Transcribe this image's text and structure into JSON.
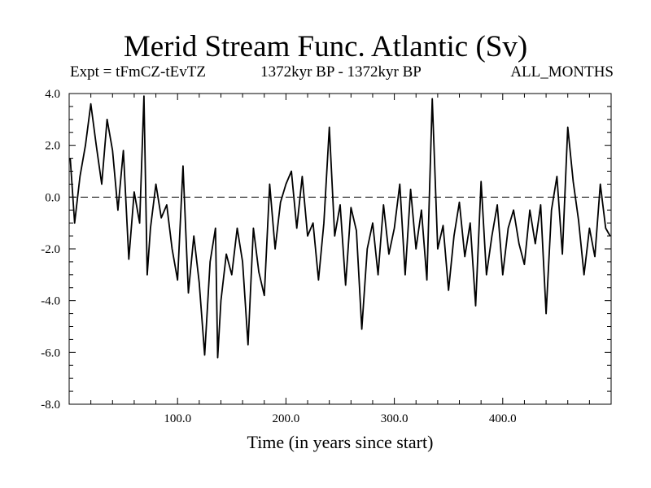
{
  "header": {
    "title": "Merid Stream Func. Atlantic (Sv)",
    "expt": "Expt = tFmCZ-tEvTZ",
    "period": "1372kyr BP - 1372kyr BP",
    "months": "ALL_MONTHS"
  },
  "colors": {
    "line": "#000000",
    "axis": "#000000",
    "background": "#ffffff"
  },
  "chart_data": {
    "type": "line",
    "title": "Merid Stream Func. Atlantic (Sv)",
    "xlabel": "Time (in years since start)",
    "ylabel": "",
    "xlim": [
      0,
      500
    ],
    "ylim": [
      -8,
      4
    ],
    "x_ticks": [
      100,
      200,
      300,
      400
    ],
    "x_tick_labels": [
      "100.0",
      "200.0",
      "300.0",
      "400.0"
    ],
    "y_ticks": [
      4,
      2,
      0,
      -2,
      -4,
      -6,
      -8
    ],
    "y_tick_labels": [
      "4.0",
      "2.0",
      "0.0",
      "-2.0",
      "-4.0",
      "-6.0",
      "-8.0"
    ],
    "reference_line": {
      "y": 0,
      "style": "dashed"
    },
    "grid": false,
    "series": [
      {
        "name": "Merid Stream Func. Atlantic",
        "x": [
          1,
          5,
          10,
          15,
          20,
          25,
          30,
          35,
          40,
          45,
          50,
          55,
          60,
          65,
          69,
          72,
          75,
          80,
          85,
          90,
          95,
          100,
          105,
          110,
          115,
          120,
          125,
          130,
          135,
          137,
          140,
          145,
          150,
          155,
          160,
          165,
          170,
          175,
          180,
          185,
          190,
          195,
          200,
          205,
          210,
          215,
          220,
          225,
          230,
          235,
          240,
          245,
          250,
          255,
          260,
          265,
          270,
          275,
          280,
          285,
          290,
          295,
          300,
          305,
          310,
          315,
          320,
          325,
          330,
          335,
          340,
          345,
          350,
          355,
          360,
          365,
          370,
          375,
          380,
          385,
          390,
          395,
          400,
          405,
          410,
          415,
          420,
          425,
          430,
          435,
          440,
          445,
          450,
          455,
          460,
          465,
          470,
          475,
          480,
          485,
          490,
          495,
          499
        ],
        "values": [
          1.5,
          -1.0,
          0.8,
          2.0,
          3.6,
          2.0,
          0.5,
          3.0,
          1.8,
          -0.5,
          1.8,
          -2.4,
          0.2,
          -1.0,
          3.9,
          -3.0,
          -1.2,
          0.5,
          -0.8,
          -0.3,
          -2.0,
          -3.2,
          1.2,
          -3.7,
          -1.5,
          -3.3,
          -6.1,
          -2.5,
          -1.2,
          -6.2,
          -4.0,
          -2.2,
          -3.0,
          -1.2,
          -2.5,
          -5.7,
          -1.2,
          -2.9,
          -3.8,
          0.5,
          -2.0,
          -0.2,
          0.5,
          1.0,
          -1.2,
          0.8,
          -1.5,
          -1.0,
          -3.2,
          -1.0,
          2.7,
          -1.5,
          -0.3,
          -3.4,
          -0.4,
          -1.3,
          -5.1,
          -2.0,
          -1.0,
          -3.0,
          -0.3,
          -2.2,
          -1.2,
          0.5,
          -3.0,
          0.3,
          -2.0,
          -0.5,
          -3.2,
          3.8,
          -2.0,
          -1.1,
          -3.6,
          -1.5,
          -0.2,
          -2.3,
          -1.0,
          -4.2,
          0.6,
          -3.0,
          -1.5,
          -0.3,
          -3.0,
          -1.2,
          -0.5,
          -1.8,
          -2.6,
          -0.5,
          -1.8,
          -0.3,
          -4.5,
          -0.5,
          0.8,
          -2.2,
          2.7,
          0.6,
          -0.9,
          -3.0,
          -1.2,
          -2.3,
          0.5,
          -1.2,
          -1.5
        ]
      }
    ]
  }
}
